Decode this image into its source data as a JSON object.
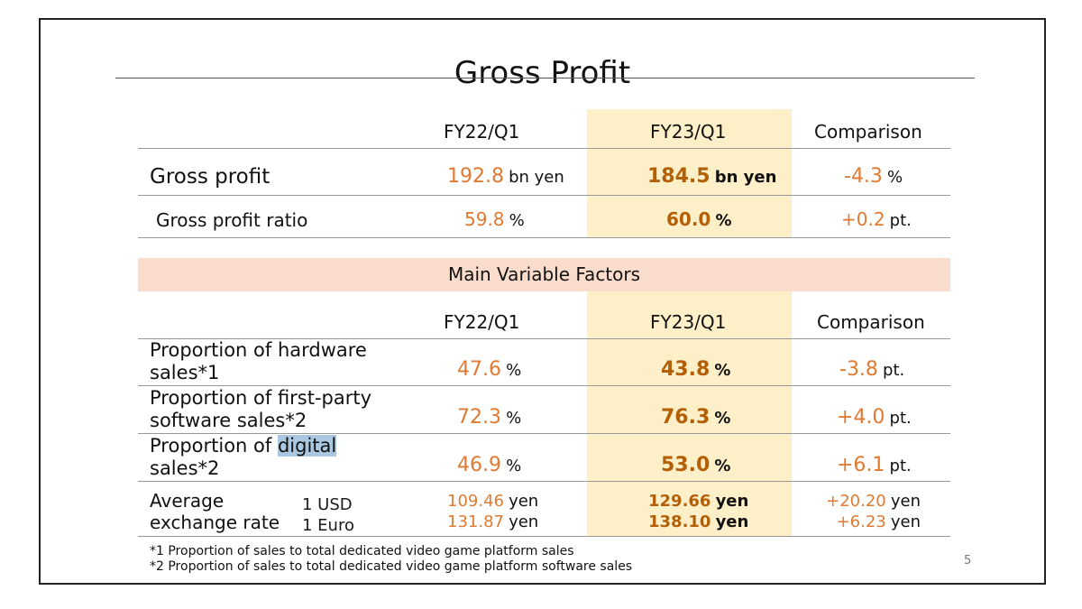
{
  "title": "Gross Profit",
  "table1": {
    "headers": [
      "FY22/Q1",
      "FY23/Q1",
      "Comparison"
    ],
    "rows": [
      {
        "label": "Gross profit",
        "fy22": "192.8",
        "fy22_unit": "bn yen",
        "fy23": "184.5",
        "fy23_unit": "bn yen",
        "comp": "-4.3",
        "comp_unit": "%"
      },
      {
        "label": "Gross profit ratio",
        "fy22": "59.8",
        "fy22_unit": "%",
        "fy23": "60.0",
        "fy23_unit": "%",
        "comp": "+0.2",
        "comp_unit": "pt."
      }
    ]
  },
  "factors": {
    "band_title": "Main Variable Factors",
    "headers": [
      "FY22/Q1",
      "FY23/Q1",
      "Comparison"
    ],
    "rows": [
      {
        "label_line1": "Proportion of hardware",
        "label_line2": "sales*1",
        "fy22": "47.6",
        "fy22_unit": "%",
        "fy23": "43.8",
        "fy23_unit": "%",
        "comp": "-3.8",
        "comp_unit": "pt."
      },
      {
        "label_line1": "Proportion of first-party",
        "label_line2": "software sales*2",
        "fy22": "72.3",
        "fy22_unit": "%",
        "fy23": "76.3",
        "fy23_unit": "%",
        "comp": "+4.0",
        "comp_unit": "pt."
      },
      {
        "label_line1_a": "Proportion of ",
        "label_line1_selected": "digital",
        "label_line2": "sales*2",
        "fy22": "46.9",
        "fy22_unit": "%",
        "fy23": "53.0",
        "fy23_unit": "%",
        "comp": "+6.1",
        "comp_unit": "pt."
      }
    ],
    "exchange": {
      "label_line1": "Average",
      "label_line2": "exchange rate",
      "currencies": [
        {
          "name": "1 USD",
          "fy22": "109.46",
          "fy23": "129.66",
          "comp": "+20.20",
          "unit": "yen"
        },
        {
          "name": "1 Euro",
          "fy22": "131.87",
          "fy23": "138.10",
          "comp": "+6.23",
          "unit": "yen"
        }
      ]
    }
  },
  "footnotes": [
    "*1 Proportion of sales to total dedicated video game platform sales",
    "*2 Proportion of sales to total dedicated video game platform software sales"
  ],
  "page_number": "5",
  "colors": {
    "highlight_column": "#fdf0c8",
    "band": "#f9dccc",
    "value_orange": "#e07a32",
    "value_bold": "#b45f06",
    "text_selection": "#a9c7e0"
  }
}
